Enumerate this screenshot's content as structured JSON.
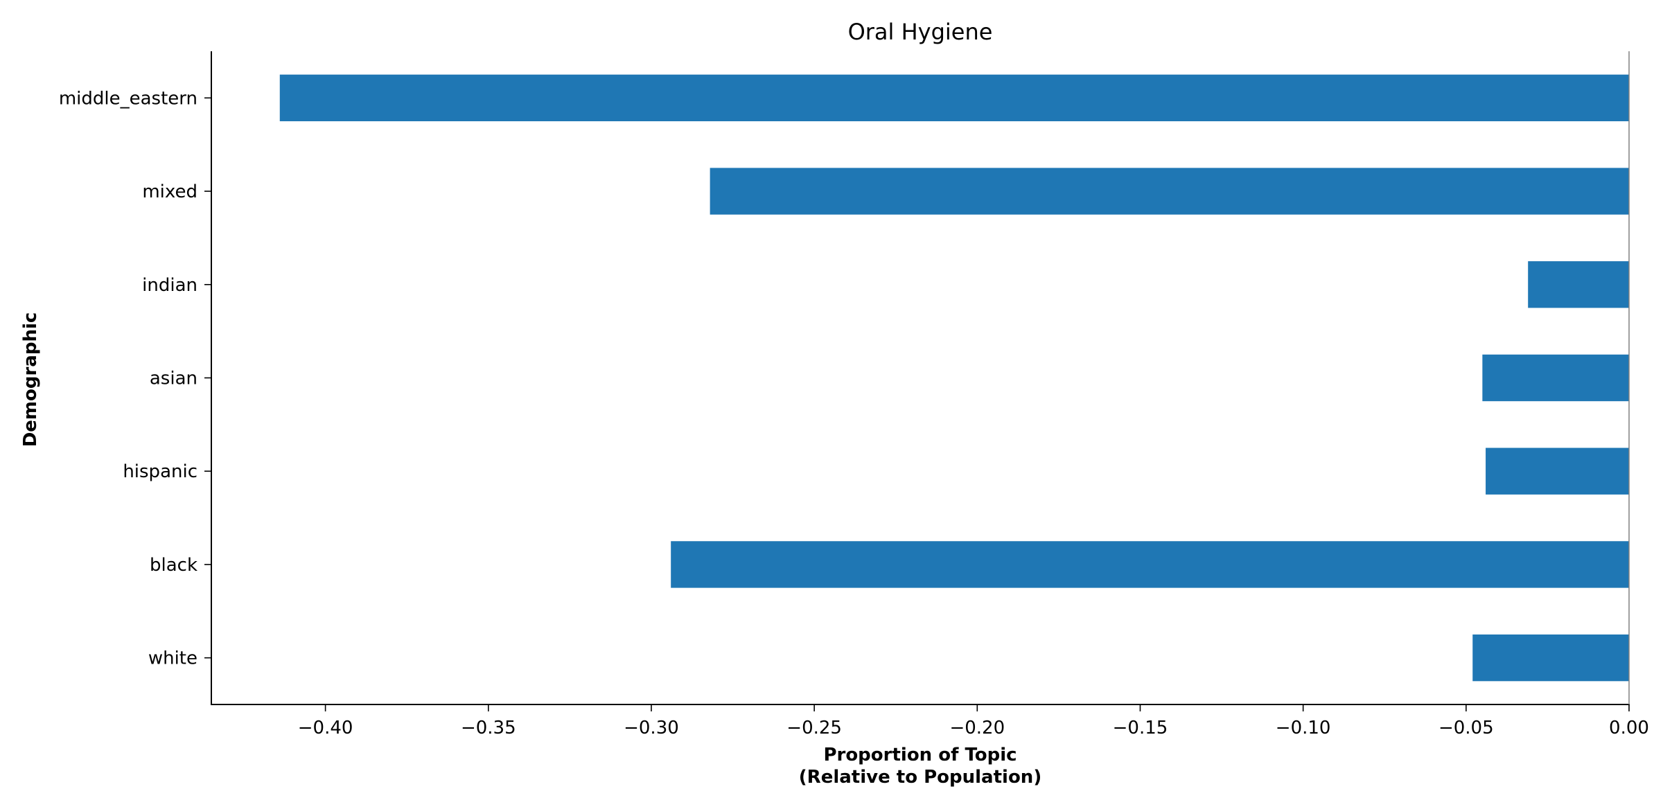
{
  "chart_data": {
    "type": "bar",
    "orientation": "horizontal",
    "title": "Oral Hygiene",
    "xlabel_line1": "Proportion of Topic",
    "xlabel_line2": "(Relative to Population)",
    "ylabel": "Demographic",
    "categories": [
      "middle_eastern",
      "mixed",
      "indian",
      "asian",
      "hispanic",
      "black",
      "white"
    ],
    "values": [
      -0.414,
      -0.282,
      -0.031,
      -0.045,
      -0.044,
      -0.294,
      -0.048
    ],
    "xlim": [
      -0.435,
      0.0
    ],
    "xticks": [
      -0.4,
      -0.35,
      -0.3,
      -0.25,
      -0.2,
      -0.15,
      -0.1,
      -0.05,
      0.0
    ],
    "xtick_labels": [
      "−0.40",
      "−0.35",
      "−0.30",
      "−0.25",
      "−0.20",
      "−0.15",
      "−0.10",
      "−0.05",
      "0.00"
    ],
    "bar_color": "#1f77b4",
    "grid": false,
    "legend": "none"
  }
}
